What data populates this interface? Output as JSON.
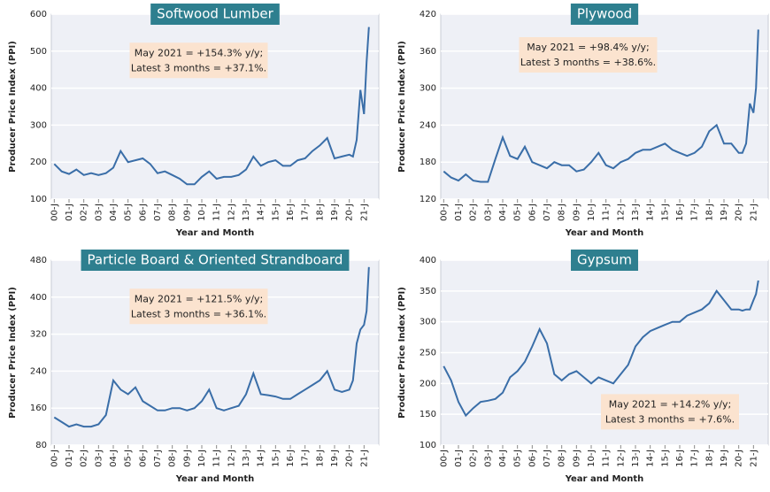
{
  "chart_data": [
    {
      "type": "line",
      "title": "Softwood Lumber",
      "annotation": [
        "May 2021 = +154.3% y/y;",
        "Latest 3 months = +37.1%."
      ],
      "xlabel": "Year and Month",
      "ylabel": "Producer Price Index (PPI)",
      "color": "#3a6ea8",
      "x": [
        0,
        0.5,
        1,
        1.5,
        2,
        2.5,
        3,
        3.5,
        4,
        4.5,
        5,
        5.5,
        6,
        6.5,
        7,
        7.5,
        8,
        8.5,
        9,
        9.5,
        10,
        10.5,
        11,
        11.5,
        12,
        12.5,
        13,
        13.5,
        14,
        14.5,
        15,
        15.5,
        16,
        16.5,
        17,
        17.5,
        18,
        18.5,
        19,
        19.5,
        20,
        20.25,
        20.5,
        20.75,
        21,
        21.17,
        21.33
      ],
      "values": [
        195,
        175,
        168,
        180,
        165,
        170,
        165,
        170,
        185,
        230,
        200,
        205,
        210,
        195,
        170,
        175,
        165,
        155,
        140,
        140,
        160,
        175,
        155,
        160,
        160,
        165,
        180,
        215,
        190,
        200,
        205,
        190,
        190,
        205,
        210,
        230,
        245,
        265,
        210,
        215,
        220,
        215,
        260,
        395,
        330,
        470,
        565
      ],
      "xlim": [
        -0.2,
        22
      ],
      "ylim": [
        100,
        600
      ],
      "yticks": [
        100,
        200,
        300,
        400,
        500,
        600
      ],
      "xticks": [
        {
          "value": 0,
          "label": "00-J"
        },
        {
          "value": 1,
          "label": "01-J"
        },
        {
          "value": 2,
          "label": "02-J"
        },
        {
          "value": 3,
          "label": "03-J"
        },
        {
          "value": 4,
          "label": "04-J"
        },
        {
          "value": 5,
          "label": "05-J"
        },
        {
          "value": 6,
          "label": "06-J"
        },
        {
          "value": 7,
          "label": "07-J"
        },
        {
          "value": 8,
          "label": "08-J"
        },
        {
          "value": 9,
          "label": "09-J"
        },
        {
          "value": 10,
          "label": "10-J"
        },
        {
          "value": 11,
          "label": "11-J"
        },
        {
          "value": 12,
          "label": "12-J"
        },
        {
          "value": 13,
          "label": "13-J"
        },
        {
          "value": 14,
          "label": "14-J"
        },
        {
          "value": 15,
          "label": "15-J"
        },
        {
          "value": 16,
          "label": "16-J"
        },
        {
          "value": 17,
          "label": "17-J"
        },
        {
          "value": 18,
          "label": "18-J"
        },
        {
          "value": 19,
          "label": "19-J"
        },
        {
          "value": 20,
          "label": "20-J"
        },
        {
          "value": 21,
          "label": "21-J"
        }
      ]
    },
    {
      "type": "line",
      "title": "Plywood",
      "annotation": [
        "May 2021 = +98.4% y/y;",
        "Latest 3 months = +38.6%."
      ],
      "xlabel": "Year and Month",
      "ylabel": "Producer Price Index (PPI)",
      "color": "#3a6ea8",
      "x": [
        0,
        0.5,
        1,
        1.5,
        2,
        2.5,
        3,
        3.5,
        4,
        4.5,
        5,
        5.5,
        6,
        6.5,
        7,
        7.5,
        8,
        8.5,
        9,
        9.5,
        10,
        10.5,
        11,
        11.5,
        12,
        12.5,
        13,
        13.5,
        14,
        14.5,
        15,
        15.5,
        16,
        16.5,
        17,
        17.5,
        18,
        18.5,
        19,
        19.5,
        20,
        20.25,
        20.5,
        20.75,
        21,
        21.17,
        21.33
      ],
      "values": [
        165,
        155,
        150,
        160,
        150,
        148,
        148,
        185,
        220,
        190,
        185,
        205,
        180,
        175,
        170,
        180,
        175,
        175,
        165,
        168,
        180,
        195,
        175,
        170,
        180,
        185,
        195,
        200,
        200,
        205,
        210,
        200,
        195,
        190,
        195,
        205,
        230,
        240,
        210,
        210,
        195,
        195,
        210,
        275,
        260,
        300,
        395
      ],
      "xlim": [
        -0.2,
        22
      ],
      "ylim": [
        120,
        420
      ],
      "yticks": [
        120,
        180,
        240,
        300,
        360,
        420
      ],
      "xticks": [
        {
          "value": 0,
          "label": "00-J"
        },
        {
          "value": 1,
          "label": "01-J"
        },
        {
          "value": 2,
          "label": "02-J"
        },
        {
          "value": 3,
          "label": "03-J"
        },
        {
          "value": 4,
          "label": "04-J"
        },
        {
          "value": 5,
          "label": "05-J"
        },
        {
          "value": 6,
          "label": "06-J"
        },
        {
          "value": 7,
          "label": "07-J"
        },
        {
          "value": 8,
          "label": "08-J"
        },
        {
          "value": 9,
          "label": "09-J"
        },
        {
          "value": 10,
          "label": "10-J"
        },
        {
          "value": 11,
          "label": "11-J"
        },
        {
          "value": 12,
          "label": "12-J"
        },
        {
          "value": 13,
          "label": "13-J"
        },
        {
          "value": 14,
          "label": "14-J"
        },
        {
          "value": 15,
          "label": "15-J"
        },
        {
          "value": 16,
          "label": "16-J"
        },
        {
          "value": 17,
          "label": "17-J"
        },
        {
          "value": 18,
          "label": "18-J"
        },
        {
          "value": 19,
          "label": "19-J"
        },
        {
          "value": 20,
          "label": "20-J"
        },
        {
          "value": 21,
          "label": "21-J"
        }
      ]
    },
    {
      "type": "line",
      "title": "Particle Board & Oriented Strandboard",
      "annotation": [
        "May 2021 = +121.5% y/y;",
        "Latest 3 months = +36.1%."
      ],
      "xlabel": "Year and Month",
      "ylabel": "Producer Price Index (PPI)",
      "color": "#3a6ea8",
      "x": [
        0,
        0.5,
        1,
        1.5,
        2,
        2.5,
        3,
        3.5,
        4,
        4.5,
        5,
        5.5,
        6,
        6.5,
        7,
        7.5,
        8,
        8.5,
        9,
        9.5,
        10,
        10.5,
        11,
        11.5,
        12,
        12.5,
        13,
        13.5,
        14,
        14.5,
        15,
        15.5,
        16,
        16.5,
        17,
        17.5,
        18,
        18.5,
        19,
        19.5,
        20,
        20.25,
        20.5,
        20.75,
        21,
        21.17,
        21.33
      ],
      "values": [
        140,
        130,
        120,
        125,
        120,
        120,
        125,
        145,
        220,
        200,
        190,
        205,
        175,
        165,
        155,
        155,
        160,
        160,
        155,
        160,
        175,
        200,
        160,
        155,
        160,
        165,
        190,
        235,
        190,
        188,
        185,
        180,
        180,
        190,
        200,
        210,
        220,
        240,
        200,
        195,
        200,
        220,
        300,
        330,
        340,
        370,
        465
      ],
      "xlim": [
        -0.2,
        22
      ],
      "ylim": [
        80,
        480
      ],
      "yticks": [
        80,
        160,
        240,
        320,
        400,
        480
      ],
      "xticks": [
        {
          "value": 0,
          "label": "00-J"
        },
        {
          "value": 1,
          "label": "01-J"
        },
        {
          "value": 2,
          "label": "02-J"
        },
        {
          "value": 3,
          "label": "03-J"
        },
        {
          "value": 4,
          "label": "04-J"
        },
        {
          "value": 5,
          "label": "05-J"
        },
        {
          "value": 6,
          "label": "06-J"
        },
        {
          "value": 7,
          "label": "07-J"
        },
        {
          "value": 8,
          "label": "08-J"
        },
        {
          "value": 9,
          "label": "09-J"
        },
        {
          "value": 10,
          "label": "10-J"
        },
        {
          "value": 11,
          "label": "11-J"
        },
        {
          "value": 12,
          "label": "12-J"
        },
        {
          "value": 13,
          "label": "13-J"
        },
        {
          "value": 14,
          "label": "14-J"
        },
        {
          "value": 15,
          "label": "15-J"
        },
        {
          "value": 16,
          "label": "16-J"
        },
        {
          "value": 17,
          "label": "17-J"
        },
        {
          "value": 18,
          "label": "18-J"
        },
        {
          "value": 19,
          "label": "19-J"
        },
        {
          "value": 20,
          "label": "20-J"
        },
        {
          "value": 21,
          "label": "21-J"
        }
      ]
    },
    {
      "type": "line",
      "title": "Gypsum",
      "annotation": [
        "May 2021 = +14.2% y/y;",
        "Latest 3 months = +7.6%."
      ],
      "xlabel": "Year and Month",
      "ylabel": "Producer Price Index (PPI)",
      "color": "#3a6ea8",
      "x": [
        0,
        0.5,
        1,
        1.5,
        2,
        2.5,
        3,
        3.5,
        4,
        4.5,
        5,
        5.5,
        6,
        6.5,
        7,
        7.5,
        8,
        8.5,
        9,
        9.5,
        10,
        10.5,
        11,
        11.5,
        12,
        12.5,
        13,
        13.5,
        14,
        14.5,
        15,
        15.5,
        16,
        16.5,
        17,
        17.5,
        18,
        18.5,
        19,
        19.5,
        20,
        20.25,
        20.5,
        20.75,
        21,
        21.17,
        21.33
      ],
      "values": [
        228,
        205,
        170,
        148,
        160,
        170,
        172,
        175,
        185,
        210,
        220,
        235,
        260,
        288,
        265,
        215,
        205,
        215,
        220,
        210,
        200,
        210,
        205,
        200,
        215,
        230,
        260,
        275,
        285,
        290,
        295,
        300,
        300,
        310,
        315,
        320,
        330,
        350,
        335,
        320,
        320,
        318,
        320,
        320,
        335,
        345,
        367
      ],
      "xlim": [
        -0.2,
        22
      ],
      "ylim": [
        100,
        400
      ],
      "yticks": [
        100,
        150,
        200,
        250,
        300,
        350,
        400
      ],
      "xticks": [
        {
          "value": 0,
          "label": "00-J"
        },
        {
          "value": 1,
          "label": "01-J"
        },
        {
          "value": 2,
          "label": "02-J"
        },
        {
          "value": 3,
          "label": "03-J"
        },
        {
          "value": 4,
          "label": "04-J"
        },
        {
          "value": 5,
          "label": "05-J"
        },
        {
          "value": 6,
          "label": "06-J"
        },
        {
          "value": 7,
          "label": "07-J"
        },
        {
          "value": 8,
          "label": "08-J"
        },
        {
          "value": 9,
          "label": "09-J"
        },
        {
          "value": 10,
          "label": "10-J"
        },
        {
          "value": 11,
          "label": "11-J"
        },
        {
          "value": 12,
          "label": "12-J"
        },
        {
          "value": 13,
          "label": "13-J"
        },
        {
          "value": 14,
          "label": "14-J"
        },
        {
          "value": 15,
          "label": "15-J"
        },
        {
          "value": 16,
          "label": "16-J"
        },
        {
          "value": 17,
          "label": "17-J"
        },
        {
          "value": 18,
          "label": "18-J"
        },
        {
          "value": 19,
          "label": "19-J"
        },
        {
          "value": 20,
          "label": "20-J"
        },
        {
          "value": 21,
          "label": "21-J"
        }
      ]
    }
  ]
}
